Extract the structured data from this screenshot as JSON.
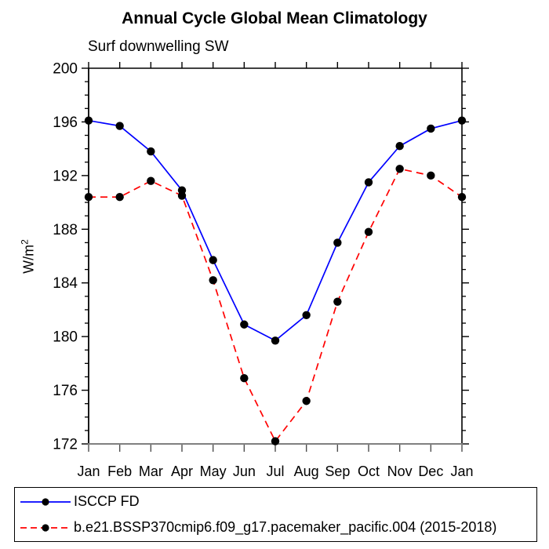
{
  "chart_data": {
    "type": "line",
    "title": "Annual Cycle Global Mean Climatology",
    "subtitle": "Surf downwelling SW",
    "ylabel_base": "W/m",
    "ylabel_exponent": "2",
    "categories": [
      "Jan",
      "Feb",
      "Mar",
      "Apr",
      "May",
      "Jun",
      "Jul",
      "Aug",
      "Sep",
      "Oct",
      "Nov",
      "Dec",
      "Jan"
    ],
    "series": [
      {
        "name": "ISCCP FD",
        "color": "#0000ff",
        "style": "solid",
        "values": [
          196.1,
          195.7,
          193.8,
          190.9,
          185.7,
          180.9,
          179.7,
          181.6,
          187.0,
          191.5,
          194.2,
          195.5,
          196.1
        ]
      },
      {
        "name": "b.e21.BSSP370cmip6.f09_g17.pacemaker_pacific.004 (2015-2018)",
        "color": "#ff0000",
        "style": "dashed",
        "values": [
          190.4,
          190.4,
          191.6,
          190.5,
          184.2,
          176.9,
          172.2,
          175.2,
          182.6,
          187.8,
          192.5,
          192.0,
          190.4
        ]
      }
    ],
    "marker_color": "#000000",
    "ylim": [
      172,
      200
    ],
    "ytick_step": 4,
    "yminor_step": 1,
    "grid": false,
    "legend_position": "bottom"
  }
}
